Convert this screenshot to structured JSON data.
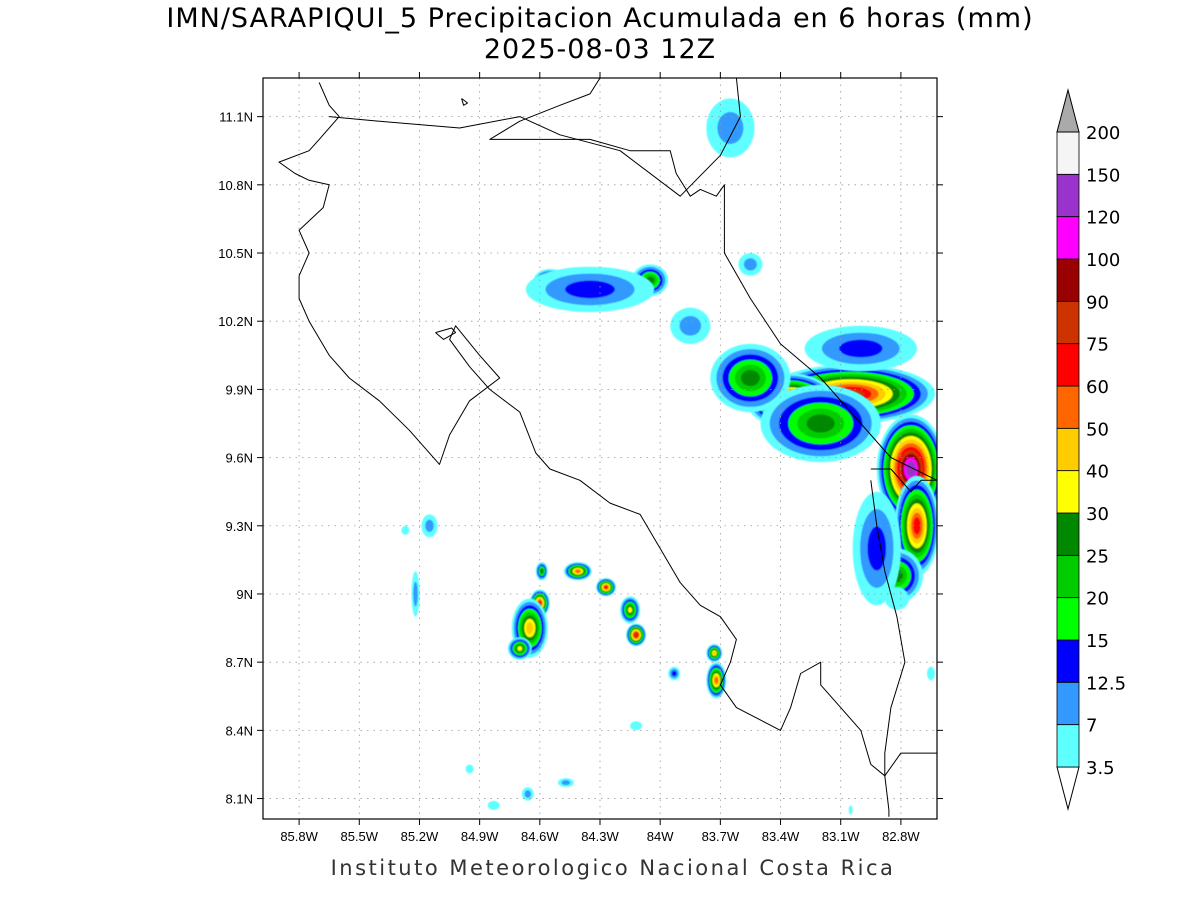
{
  "title": {
    "line1": "IMN/SARAPIQUI_5 Precipitacion Acumulada en 6 horas (mm)",
    "line2": "2025-08-03 12Z"
  },
  "footer": "Instituto Meteorologico Nacional Costa Rica",
  "chart_data": {
    "type": "heatmap",
    "lon_range": [
      -85.98,
      -82.62
    ],
    "lat_range": [
      8.01,
      11.27
    ],
    "x_ticks": [
      "85.8W",
      "85.5W",
      "85.2W",
      "84.9W",
      "84.6W",
      "84.3W",
      "84W",
      "83.7W",
      "83.4W",
      "83.1W",
      "82.8W"
    ],
    "x_tick_values": [
      -85.8,
      -85.5,
      -85.2,
      -84.9,
      -84.6,
      -84.3,
      -84.0,
      -83.7,
      -83.4,
      -83.1,
      -82.8
    ],
    "y_ticks": [
      "8.1N",
      "8.4N",
      "8.7N",
      "9N",
      "9.3N",
      "9.6N",
      "9.9N",
      "10.2N",
      "10.5N",
      "10.8N",
      "11.1N"
    ],
    "y_tick_values": [
      8.1,
      8.4,
      8.7,
      9.0,
      9.3,
      9.6,
      9.9,
      10.2,
      10.5,
      10.8,
      11.1
    ],
    "grid": true,
    "colorbar": {
      "levels": [
        "3.5",
        "7",
        "12.5",
        "15",
        "20",
        "25",
        "30",
        "40",
        "50",
        "60",
        "75",
        "90",
        "100",
        "120",
        "150",
        "200"
      ],
      "colors": [
        "#ffffff",
        "#5effff",
        "#3399ff",
        "#0000ff",
        "#00ff00",
        "#00cc00",
        "#008800",
        "#ffff00",
        "#ffcc00",
        "#ff6600",
        "#ff0000",
        "#cc3300",
        "#990000",
        "#ff00ff",
        "#9933cc",
        "#f5f5f5",
        "#aaaaaa"
      ]
    },
    "precip_cells": [
      {
        "lon": -83.05,
        "lat": 9.88,
        "rlon": 0.42,
        "rlat": 0.13,
        "peak": 75
      },
      {
        "lon": -83.35,
        "lat": 9.85,
        "rlon": 0.22,
        "rlat": 0.12,
        "peak": 75
      },
      {
        "lon": -82.75,
        "lat": 9.55,
        "rlon": 0.17,
        "rlat": 0.24,
        "peak": 120
      },
      {
        "lon": -82.72,
        "lat": 9.3,
        "rlon": 0.11,
        "rlat": 0.22,
        "peak": 60
      },
      {
        "lon": -82.82,
        "lat": 9.08,
        "rlon": 0.13,
        "rlat": 0.12,
        "peak": 25
      },
      {
        "lon": -83.2,
        "lat": 9.75,
        "rlon": 0.3,
        "rlat": 0.17,
        "peak": 25
      },
      {
        "lon": -83.55,
        "lat": 9.95,
        "rlon": 0.2,
        "rlat": 0.15,
        "peak": 25
      },
      {
        "lon": -83.0,
        "lat": 10.08,
        "rlon": 0.28,
        "rlat": 0.1,
        "peak": 12.5
      },
      {
        "lon": -82.92,
        "lat": 9.2,
        "rlon": 0.12,
        "rlat": 0.25,
        "peak": 12.5
      },
      {
        "lon": -84.55,
        "lat": 10.38,
        "rlon": 0.08,
        "rlat": 0.05,
        "peak": 25
      },
      {
        "lon": -84.23,
        "lat": 10.38,
        "rlon": 0.07,
        "rlat": 0.05,
        "peak": 25
      },
      {
        "lon": -84.05,
        "lat": 10.38,
        "rlon": 0.09,
        "rlat": 0.07,
        "peak": 25
      },
      {
        "lon": -84.35,
        "lat": 10.34,
        "rlon": 0.32,
        "rlat": 0.1,
        "peak": 12.5
      },
      {
        "lon": -83.85,
        "lat": 10.18,
        "rlon": 0.1,
        "rlat": 0.08,
        "peak": 7
      },
      {
        "lon": -83.65,
        "lat": 11.05,
        "rlon": 0.12,
        "rlat": 0.13,
        "peak": 7
      },
      {
        "lon": -83.55,
        "lat": 10.45,
        "rlon": 0.06,
        "rlat": 0.05,
        "peak": 7
      },
      {
        "lon": -84.6,
        "lat": 8.96,
        "rlon": 0.05,
        "rlat": 0.06,
        "peak": 60
      },
      {
        "lon": -84.65,
        "lat": 8.85,
        "rlon": 0.09,
        "rlat": 0.13,
        "peak": 40
      },
      {
        "lon": -84.7,
        "lat": 8.76,
        "rlon": 0.06,
        "rlat": 0.05,
        "peak": 30
      },
      {
        "lon": -84.59,
        "lat": 9.1,
        "rlon": 0.03,
        "rlat": 0.04,
        "peak": 25
      },
      {
        "lon": -84.41,
        "lat": 9.1,
        "rlon": 0.07,
        "rlat": 0.04,
        "peak": 50
      },
      {
        "lon": -84.27,
        "lat": 9.03,
        "rlon": 0.05,
        "rlat": 0.04,
        "peak": 60
      },
      {
        "lon": -84.15,
        "lat": 8.93,
        "rlon": 0.05,
        "rlat": 0.06,
        "peak": 30
      },
      {
        "lon": -84.12,
        "lat": 8.82,
        "rlon": 0.05,
        "rlat": 0.05,
        "peak": 75
      },
      {
        "lon": -83.73,
        "lat": 8.74,
        "rlon": 0.04,
        "rlat": 0.04,
        "peak": 40
      },
      {
        "lon": -83.72,
        "lat": 8.62,
        "rlon": 0.05,
        "rlat": 0.08,
        "peak": 50
      },
      {
        "lon": -83.93,
        "lat": 8.65,
        "rlon": 0.03,
        "rlat": 0.03,
        "peak": 12.5
      },
      {
        "lon": -85.15,
        "lat": 9.3,
        "rlon": 0.04,
        "rlat": 0.05,
        "peak": 7
      },
      {
        "lon": -85.27,
        "lat": 9.28,
        "rlon": 0.02,
        "rlat": 0.02,
        "peak": 3.5
      },
      {
        "lon": -85.22,
        "lat": 9.0,
        "rlon": 0.02,
        "rlat": 0.1,
        "peak": 7
      },
      {
        "lon": -84.47,
        "lat": 8.17,
        "rlon": 0.04,
        "rlat": 0.02,
        "peak": 7
      },
      {
        "lon": -84.66,
        "lat": 8.12,
        "rlon": 0.03,
        "rlat": 0.03,
        "peak": 7
      },
      {
        "lon": -84.83,
        "lat": 8.07,
        "rlon": 0.03,
        "rlat": 0.02,
        "peak": 3.5
      },
      {
        "lon": -84.95,
        "lat": 8.23,
        "rlon": 0.02,
        "rlat": 0.02,
        "peak": 3.5
      },
      {
        "lon": -84.12,
        "lat": 8.42,
        "rlon": 0.03,
        "rlat": 0.02,
        "peak": 3.5
      },
      {
        "lon": -82.82,
        "lat": 8.98,
        "rlon": 0.06,
        "rlat": 0.05,
        "peak": 3.5
      },
      {
        "lon": -83.05,
        "lat": 8.05,
        "rlon": 0.01,
        "rlat": 0.02,
        "peak": 3.5
      },
      {
        "lon": -82.65,
        "lat": 8.65,
        "rlon": 0.02,
        "rlat": 0.03,
        "peak": 3.5
      }
    ],
    "coastlines": [
      {
        "name": "pacific-coast",
        "points": [
          [
            -85.7,
            11.25
          ],
          [
            -85.65,
            11.15
          ],
          [
            -85.6,
            11.1
          ],
          [
            -85.7,
            11.0
          ],
          [
            -85.75,
            10.95
          ],
          [
            -85.9,
            10.9
          ],
          [
            -85.82,
            10.85
          ],
          [
            -85.75,
            10.82
          ],
          [
            -85.65,
            10.8
          ],
          [
            -85.68,
            10.7
          ],
          [
            -85.8,
            10.6
          ],
          [
            -85.75,
            10.5
          ],
          [
            -85.8,
            10.4
          ],
          [
            -85.8,
            10.3
          ],
          [
            -85.75,
            10.2
          ],
          [
            -85.65,
            10.05
          ],
          [
            -85.55,
            9.95
          ],
          [
            -85.4,
            9.85
          ],
          [
            -85.25,
            9.72
          ],
          [
            -85.1,
            9.57
          ],
          [
            -85.05,
            9.7
          ],
          [
            -84.95,
            9.85
          ],
          [
            -84.8,
            9.95
          ],
          [
            -84.9,
            10.05
          ],
          [
            -85.02,
            10.18
          ],
          [
            -85.05,
            10.12
          ],
          [
            -84.95,
            10.0
          ],
          [
            -84.85,
            9.9
          ],
          [
            -84.7,
            9.8
          ],
          [
            -84.62,
            9.62
          ],
          [
            -84.55,
            9.55
          ],
          [
            -84.4,
            9.5
          ],
          [
            -84.25,
            9.4
          ],
          [
            -84.1,
            9.35
          ],
          [
            -84.0,
            9.2
          ],
          [
            -83.9,
            9.05
          ],
          [
            -83.8,
            8.95
          ],
          [
            -83.7,
            8.9
          ],
          [
            -83.62,
            8.8
          ],
          [
            -83.65,
            8.7
          ],
          [
            -83.7,
            8.6
          ],
          [
            -83.62,
            8.5
          ],
          [
            -83.4,
            8.4
          ],
          [
            -83.35,
            8.5
          ],
          [
            -83.3,
            8.65
          ],
          [
            -83.2,
            8.7
          ],
          [
            -83.2,
            8.6
          ],
          [
            -83.1,
            8.5
          ],
          [
            -83.0,
            8.4
          ],
          [
            -82.95,
            8.25
          ],
          [
            -82.88,
            8.2
          ],
          [
            -82.8,
            8.3
          ],
          [
            -82.62,
            8.3
          ]
        ]
      },
      {
        "name": "caribbean-coast",
        "points": [
          [
            -84.3,
            11.27
          ],
          [
            -84.35,
            11.2
          ],
          [
            -84.5,
            11.15
          ],
          [
            -84.7,
            11.08
          ],
          [
            -84.85,
            11.0
          ],
          [
            -84.35,
            11.0
          ],
          [
            -84.15,
            10.95
          ],
          [
            -83.95,
            10.95
          ],
          [
            -83.92,
            10.85
          ],
          [
            -83.85,
            10.75
          ],
          [
            -83.8,
            10.78
          ],
          [
            -83.72,
            10.75
          ],
          [
            -83.68,
            10.8
          ],
          [
            -83.68,
            10.5
          ],
          [
            -83.55,
            10.3
          ],
          [
            -83.4,
            10.1
          ],
          [
            -83.2,
            9.95
          ],
          [
            -83.0,
            9.75
          ],
          [
            -82.85,
            9.6
          ],
          [
            -82.62,
            9.5
          ]
        ]
      },
      {
        "name": "nicaragua-border",
        "points": [
          [
            -85.65,
            11.1
          ],
          [
            -85.4,
            11.08
          ],
          [
            -85.0,
            11.05
          ],
          [
            -84.7,
            11.1
          ],
          [
            -84.5,
            11.02
          ],
          [
            -84.2,
            10.95
          ],
          [
            -83.9,
            10.75
          ],
          [
            -83.7,
            10.93
          ],
          [
            -83.6,
            11.1
          ],
          [
            -83.62,
            11.27
          ]
        ]
      },
      {
        "name": "panama-border",
        "points": [
          [
            -82.95,
            9.55
          ],
          [
            -82.85,
            9.55
          ],
          [
            -82.75,
            9.45
          ],
          [
            -82.7,
            9.5
          ],
          [
            -82.62,
            9.5
          ]
        ]
      },
      {
        "name": "panama-border-south",
        "points": [
          [
            -82.95,
            9.5
          ],
          [
            -82.92,
            9.3
          ],
          [
            -82.88,
            9.1
          ],
          [
            -82.82,
            8.9
          ],
          [
            -82.78,
            8.7
          ],
          [
            -82.85,
            8.5
          ],
          [
            -82.88,
            8.3
          ],
          [
            -82.88,
            8.2
          ],
          [
            -82.86,
            8.05
          ],
          [
            -82.86,
            8.02
          ]
        ]
      },
      {
        "name": "isla-chira",
        "points": [
          [
            -85.12,
            10.15
          ],
          [
            -85.08,
            10.12
          ],
          [
            -85.02,
            10.15
          ],
          [
            -85.04,
            10.17
          ],
          [
            -85.12,
            10.15
          ]
        ]
      },
      {
        "name": "islet-north",
        "points": [
          [
            -84.99,
            11.18
          ],
          [
            -84.98,
            11.15
          ],
          [
            -84.96,
            11.16
          ],
          [
            -84.99,
            11.18
          ]
        ]
      }
    ]
  }
}
